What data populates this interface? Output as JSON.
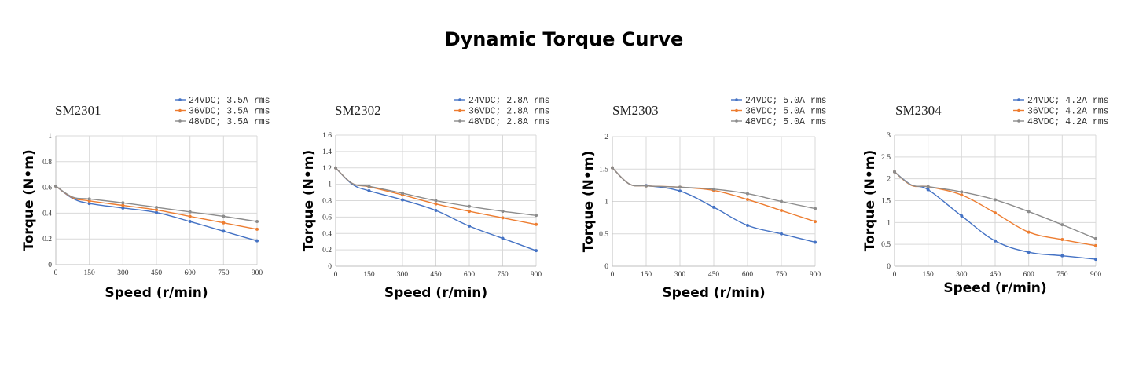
{
  "title": "Dynamic Torque Curve",
  "colors": {
    "24V": "#4472c4",
    "36V": "#ed7d31",
    "48V": "#8c8c8c"
  },
  "chart_data": [
    {
      "type": "line",
      "title": "SM2301",
      "xlabel": "Speed (r/min)",
      "ylabel": "Torque (N•m)",
      "xlim": [
        0,
        900
      ],
      "ylim": [
        0,
        1
      ],
      "xticks": [
        0,
        150,
        300,
        450,
        600,
        750,
        900
      ],
      "yticks": [
        0,
        0.2,
        0.4,
        0.6,
        0.8,
        1
      ],
      "ytick_labels": [
        "0",
        "0.2",
        "0.4",
        "0.6",
        "0.8",
        "1"
      ],
      "grid": true,
      "legend": "top-right",
      "x": [
        0,
        75,
        150,
        300,
        450,
        600,
        750,
        900
      ],
      "series": [
        {
          "name": "24VDC; 3.5A rms",
          "values": [
            0.61,
            0.515,
            0.475,
            0.44,
            0.405,
            0.335,
            0.26,
            0.185
          ]
        },
        {
          "name": "36VDC; 3.5A rms",
          "values": [
            0.61,
            0.52,
            0.495,
            0.46,
            0.425,
            0.375,
            0.325,
            0.275
          ]
        },
        {
          "name": "48VDC; 3.5A rms",
          "values": [
            0.61,
            0.525,
            0.51,
            0.48,
            0.445,
            0.41,
            0.375,
            0.335
          ]
        }
      ]
    },
    {
      "type": "line",
      "title": "SM2302",
      "xlabel": "Speed (r/min)",
      "ylabel": "Torque (N•m)",
      "xlim": [
        0,
        900
      ],
      "ylim": [
        0,
        1.6
      ],
      "xticks": [
        0,
        150,
        300,
        450,
        600,
        750,
        900
      ],
      "yticks": [
        0,
        0.2,
        0.4,
        0.6,
        0.8,
        1,
        1.2,
        1.4,
        1.6
      ],
      "ytick_labels": [
        "0",
        "0.2",
        "0.4",
        "0.6",
        "0.8",
        "1",
        "1.2",
        "1.4",
        "1.6"
      ],
      "grid": true,
      "legend": "top-right",
      "x": [
        0,
        75,
        150,
        300,
        450,
        600,
        750,
        900
      ],
      "series": [
        {
          "name": "24VDC; 2.8A rms",
          "values": [
            1.2,
            1.0,
            0.92,
            0.81,
            0.68,
            0.49,
            0.34,
            0.19
          ]
        },
        {
          "name": "36VDC; 2.8A rms",
          "values": [
            1.2,
            1.01,
            0.97,
            0.87,
            0.76,
            0.67,
            0.59,
            0.51
          ]
        },
        {
          "name": "48VDC; 2.8A rms",
          "values": [
            1.2,
            1.01,
            0.975,
            0.89,
            0.8,
            0.73,
            0.67,
            0.62
          ]
        }
      ]
    },
    {
      "type": "line",
      "title": "SM2303",
      "xlabel": "Speed (r/min)",
      "ylabel": "Torque (N•m)",
      "xlim": [
        0,
        900
      ],
      "ylim": [
        0,
        2
      ],
      "xticks": [
        0,
        150,
        300,
        450,
        600,
        750,
        900
      ],
      "yticks": [
        0,
        0.5,
        1,
        1.5,
        2
      ],
      "ytick_labels": [
        "0",
        "0.5",
        "1",
        "1.5",
        "2"
      ],
      "grid": true,
      "legend": "top-right",
      "x": [
        0,
        75,
        150,
        300,
        450,
        600,
        750,
        900
      ],
      "series": [
        {
          "name": "24VDC; 5.0A rms",
          "values": [
            1.52,
            1.27,
            1.245,
            1.16,
            0.91,
            0.63,
            0.5,
            0.37
          ]
        },
        {
          "name": "36VDC; 5.0A rms",
          "values": [
            1.52,
            1.27,
            1.24,
            1.22,
            1.17,
            1.03,
            0.86,
            0.69
          ]
        },
        {
          "name": "48VDC; 5.0A rms",
          "values": [
            1.52,
            1.27,
            1.24,
            1.22,
            1.19,
            1.12,
            1.0,
            0.89
          ]
        }
      ]
    },
    {
      "type": "line",
      "title": "SM2304",
      "xlabel": "Speed (r/min)",
      "ylabel": "Torque (N•m)",
      "xlim": [
        0,
        900
      ],
      "ylim": [
        0,
        3
      ],
      "xticks": [
        0,
        150,
        300,
        450,
        600,
        750,
        900
      ],
      "yticks": [
        0,
        0.5,
        1,
        1.5,
        2,
        2.5,
        3
      ],
      "ytick_labels": [
        "0",
        "0.5",
        "1",
        "1.5",
        "2",
        "2.5",
        "3"
      ],
      "grid": true,
      "legend": "top-right",
      "x": [
        0,
        75,
        150,
        300,
        450,
        600,
        750,
        900
      ],
      "series": [
        {
          "name": "24VDC; 4.2A rms",
          "values": [
            2.16,
            1.86,
            1.75,
            1.15,
            0.58,
            0.32,
            0.24,
            0.16
          ]
        },
        {
          "name": "36VDC; 4.2A rms",
          "values": [
            2.16,
            1.85,
            1.82,
            1.63,
            1.22,
            0.78,
            0.61,
            0.47
          ]
        },
        {
          "name": "48VDC; 4.2A rms",
          "values": [
            2.16,
            1.86,
            1.82,
            1.7,
            1.52,
            1.25,
            0.95,
            0.63
          ]
        }
      ]
    }
  ]
}
